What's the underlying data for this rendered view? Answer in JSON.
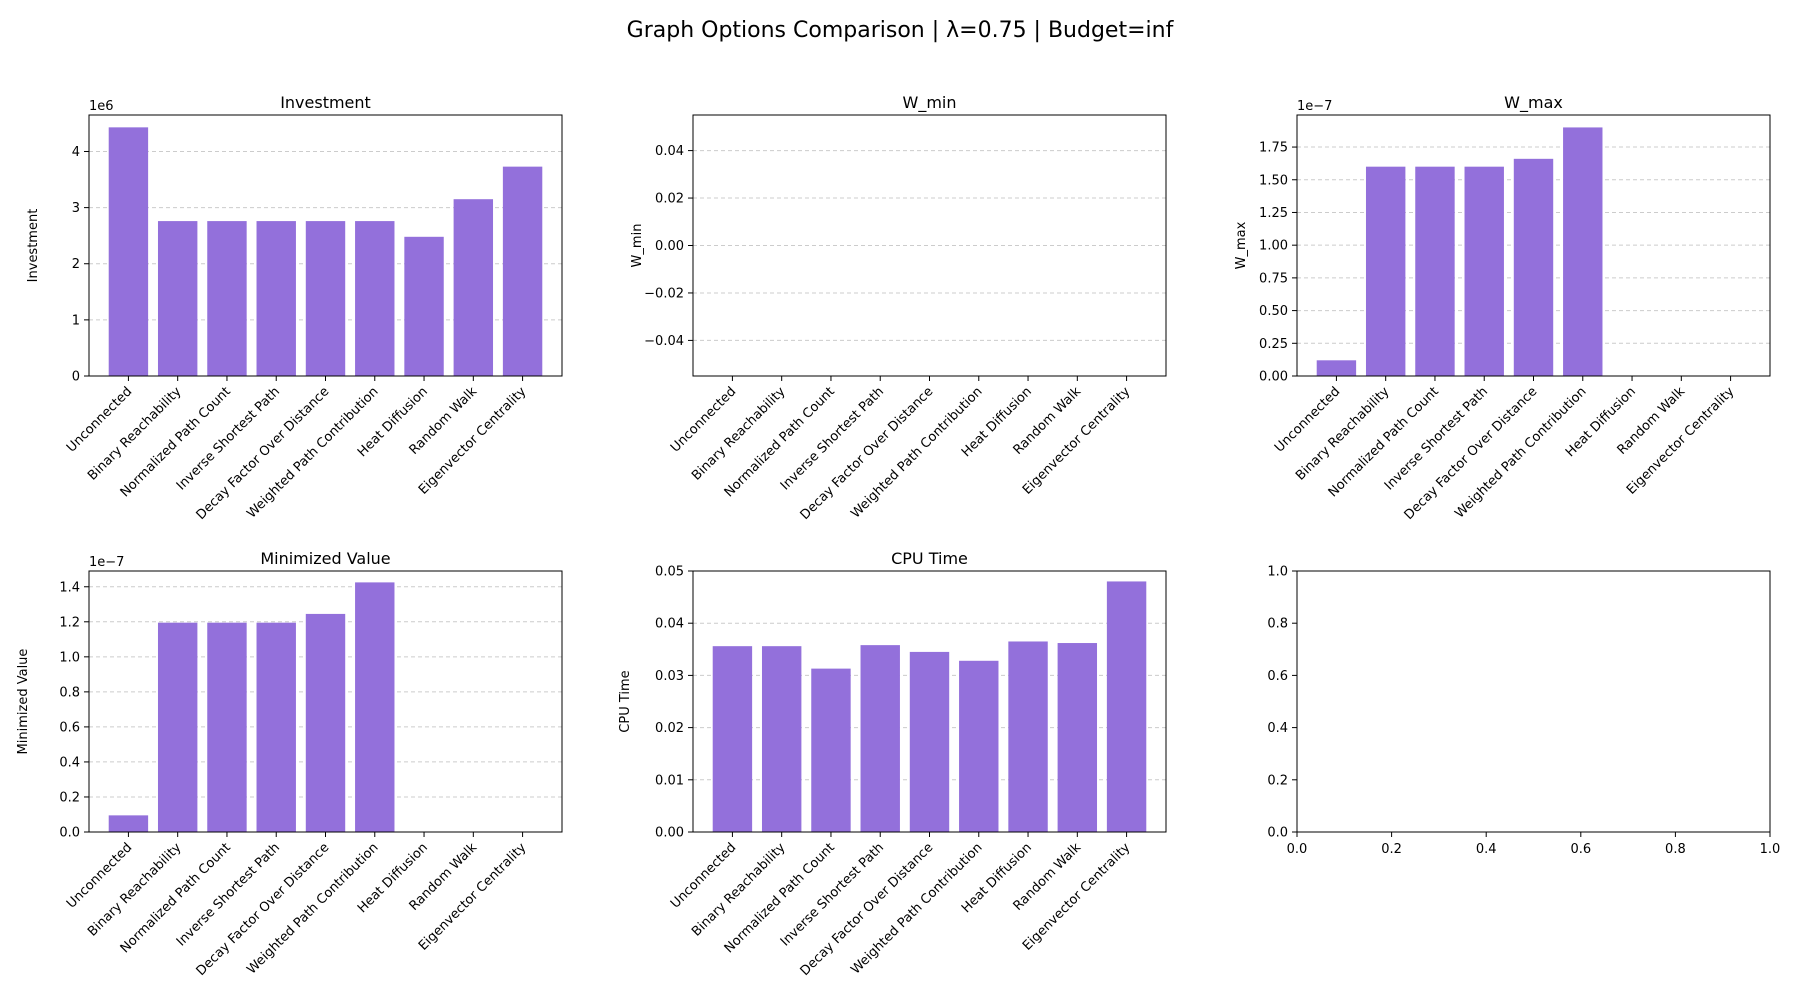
{
  "figure": {
    "title": "Graph Options Comparison | λ=0.75 | Budget=inf",
    "bar_color": "#9370db",
    "grid_color": "#cccccc"
  },
  "chart_data": [
    {
      "type": "bar",
      "title": "Investment",
      "ylabel": "Investment",
      "multiplier": "1e6",
      "ylim": [
        0,
        4.65
      ],
      "yticks": [
        0,
        1,
        2,
        3,
        4
      ],
      "yticklabels": [
        "0",
        "1",
        "2",
        "3",
        "4"
      ],
      "grid": true,
      "categories": [
        "Unconnected",
        "Binary Reachability",
        "Normalized Path Count",
        "Inverse Shortest Path",
        "Decay Factor Over Distance",
        "Weighted Path Contribution",
        "Heat Diffusion",
        "Random Walk",
        "Eigenvector Centrality"
      ],
      "values": [
        4.43,
        2.76,
        2.76,
        2.76,
        2.76,
        2.76,
        2.48,
        3.15,
        3.73
      ]
    },
    {
      "type": "bar",
      "title": "W_min",
      "ylabel": "W_min",
      "multiplier": "",
      "ylim": [
        -0.055,
        0.055
      ],
      "yticks": [
        -0.04,
        -0.02,
        0,
        0.02,
        0.04
      ],
      "yticklabels": [
        "−0.04",
        "−0.02",
        "0.00",
        "0.02",
        "0.04"
      ],
      "grid": true,
      "categories": [
        "Unconnected",
        "Binary Reachability",
        "Normalized Path Count",
        "Inverse Shortest Path",
        "Decay Factor Over Distance",
        "Weighted Path Contribution",
        "Heat Diffusion",
        "Random Walk",
        "Eigenvector Centrality"
      ],
      "values": [
        0,
        0,
        0,
        0,
        0,
        0,
        0,
        0,
        0
      ]
    },
    {
      "type": "bar",
      "title": "W_max",
      "ylabel": "W_max",
      "multiplier": "1e−7",
      "ylim": [
        0,
        1.995
      ],
      "yticks": [
        0,
        0.25,
        0.5,
        0.75,
        1.0,
        1.25,
        1.5,
        1.75
      ],
      "yticklabels": [
        "0.00",
        "0.25",
        "0.50",
        "0.75",
        "1.00",
        "1.25",
        "1.50",
        "1.75"
      ],
      "grid": true,
      "categories": [
        "Unconnected",
        "Binary Reachability",
        "Normalized Path Count",
        "Inverse Shortest Path",
        "Decay Factor Over Distance",
        "Weighted Path Contribution",
        "Heat Diffusion",
        "Random Walk",
        "Eigenvector Centrality"
      ],
      "values": [
        0.12,
        1.6,
        1.6,
        1.6,
        1.66,
        1.9,
        0,
        0,
        0
      ]
    },
    {
      "type": "bar",
      "title": "Minimized Value",
      "ylabel": "Minimized Value",
      "multiplier": "1e−7",
      "ylim": [
        0,
        1.49
      ],
      "yticks": [
        0,
        0.2,
        0.4,
        0.6,
        0.8,
        1.0,
        1.2,
        1.4
      ],
      "yticklabels": [
        "0.0",
        "0.2",
        "0.4",
        "0.6",
        "0.8",
        "1.0",
        "1.2",
        "1.4"
      ],
      "grid": true,
      "categories": [
        "Unconnected",
        "Binary Reachability",
        "Normalized Path Count",
        "Inverse Shortest Path",
        "Decay Factor Over Distance",
        "Weighted Path Contribution",
        "Heat Diffusion",
        "Random Walk",
        "Eigenvector Centrality"
      ],
      "values": [
        0.095,
        1.195,
        1.195,
        1.195,
        1.245,
        1.425,
        0,
        0,
        0
      ]
    },
    {
      "type": "bar",
      "title": "CPU Time",
      "ylabel": "CPU Time",
      "multiplier": "",
      "ylim": [
        0,
        0.05
      ],
      "yticks": [
        0,
        0.01,
        0.02,
        0.03,
        0.04,
        0.05
      ],
      "yticklabels": [
        "0.00",
        "0.01",
        "0.02",
        "0.03",
        "0.04",
        "0.05"
      ],
      "grid": true,
      "categories": [
        "Unconnected",
        "Binary Reachability",
        "Normalized Path Count",
        "Inverse Shortest Path",
        "Decay Factor Over Distance",
        "Weighted Path Contribution",
        "Heat Diffusion",
        "Random Walk",
        "Eigenvector Centrality"
      ],
      "values": [
        0.0356,
        0.0356,
        0.0313,
        0.0358,
        0.0345,
        0.0328,
        0.0365,
        0.0362,
        0.048
      ]
    },
    {
      "type": "bar",
      "title": "",
      "ylabel": "",
      "multiplier": "",
      "empty": true,
      "ylim": [
        0,
        1
      ],
      "xlim": [
        0,
        1
      ],
      "yticks": [
        0,
        0.2,
        0.4,
        0.6,
        0.8,
        1.0
      ],
      "yticklabels": [
        "0.0",
        "0.2",
        "0.4",
        "0.6",
        "0.8",
        "1.0"
      ],
      "xticks": [
        0,
        0.2,
        0.4,
        0.6,
        0.8,
        1.0
      ],
      "xticklabels": [
        "0.0",
        "0.2",
        "0.4",
        "0.6",
        "0.8",
        "1.0"
      ],
      "grid": false,
      "categories": [],
      "values": []
    }
  ]
}
